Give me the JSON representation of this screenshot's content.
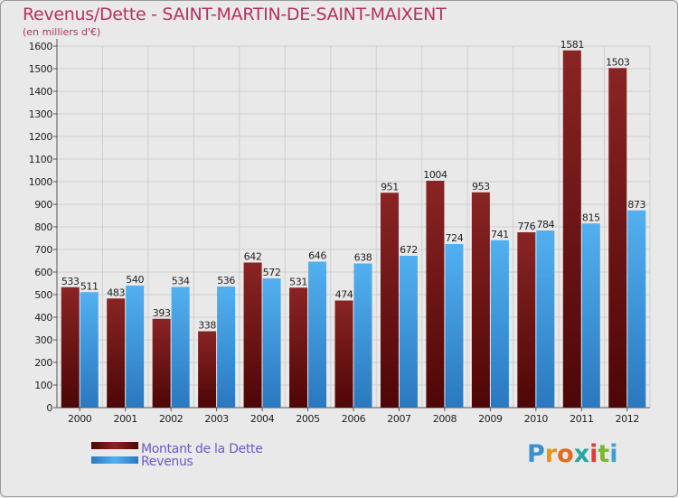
{
  "header": {
    "title": "Revenus/Dette - SAINT-MARTIN-DE-SAINT-MAIXENT",
    "subtitle": "(en milliers d'€)"
  },
  "brand": {
    "logo_text": "Proxiti"
  },
  "colors": {
    "dette": "#7a1a1a",
    "revenus": "#3a9ae0",
    "title": "#b5315e",
    "legend_text": "#6a5acd"
  },
  "chart_data": {
    "type": "bar",
    "title": "Revenus/Dette - SAINT-MARTIN-DE-SAINT-MAIXENT",
    "ylabel": "(en milliers d'€)",
    "xlabel": "",
    "ylim": [
      0,
      1600
    ],
    "ytick_step": 100,
    "grid": true,
    "legend_position": "bottom-left",
    "categories": [
      "2000",
      "2001",
      "2002",
      "2003",
      "2004",
      "2005",
      "2006",
      "2007",
      "2008",
      "2009",
      "2010",
      "2011",
      "2012"
    ],
    "series": [
      {
        "name": "Montant de la Dette",
        "values": [
          533,
          483,
          393,
          338,
          642,
          531,
          474,
          951,
          1004,
          953,
          776,
          1581,
          1503
        ]
      },
      {
        "name": "Revenus",
        "values": [
          511,
          540,
          534,
          536,
          572,
          646,
          638,
          672,
          724,
          741,
          784,
          815,
          873
        ]
      }
    ]
  }
}
